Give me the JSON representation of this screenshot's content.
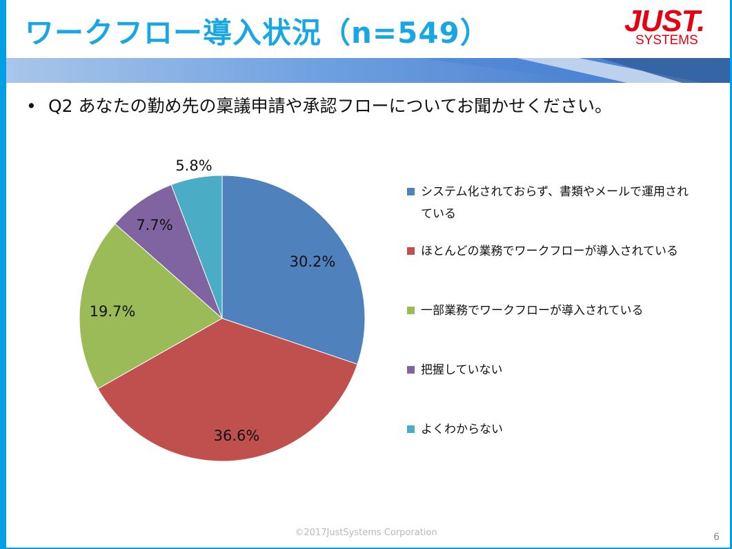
{
  "slide": {
    "title": "ワークフロー導入状況（n=549）",
    "question_bullet": "•",
    "question": "Q2 あなたの勤め先の稟議申請や承認フローについてお聞かせください。",
    "logo_top": "JUST.",
    "logo_bottom": "SYSTEMS",
    "footer": "©2017JustSystems Corporation",
    "page_number": "6"
  },
  "colors": {
    "accent": "#00a0e9",
    "title": "#19a7e3",
    "logo": "#e50012"
  },
  "chart_data": {
    "type": "pie",
    "categories": [
      "システム化されておらず、書類やメールで運用されている",
      "ほとんどの業務でワークフローが導入されている",
      "一部業務でワークフローが導入されている",
      "把握していない",
      "よくわからない"
    ],
    "values": [
      30.2,
      36.6,
      19.7,
      7.7,
      5.8
    ],
    "labels": [
      "30.2%",
      "36.6%",
      "19.7%",
      "7.7%",
      "5.8%"
    ],
    "colors": [
      "#4f81bd",
      "#c0504d",
      "#9bbb59",
      "#8064a2",
      "#4bacc6"
    ],
    "legend_lines": [
      [
        "システム化されておらず、書類やメールで運用され",
        "ている"
      ],
      [
        "ほとんどの業務でワークフローが導入されている"
      ],
      [
        "一部業務でワークフローが導入されている"
      ],
      [
        "把握していない"
      ],
      [
        "よくわからない"
      ]
    ],
    "legend_position": "right",
    "start_angle": "12 o'clock",
    "direction": "clockwise"
  }
}
